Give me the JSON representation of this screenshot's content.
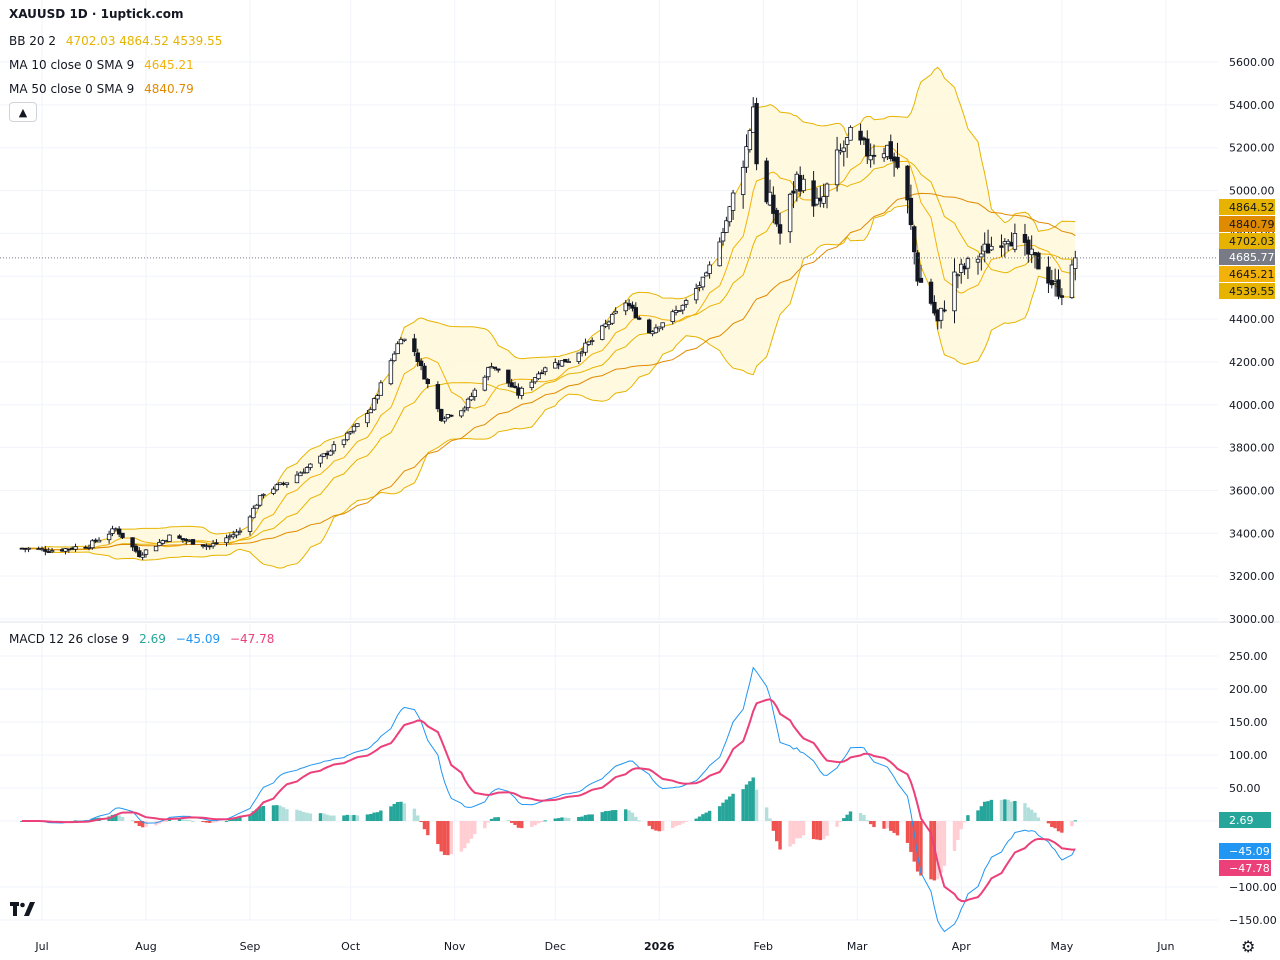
{
  "header": {
    "title": "XAUUSD 1D · 1uptick.com",
    "bb_label": "BB 20 2",
    "bb_values": [
      "4702.03",
      "4864.52",
      "4539.55"
    ],
    "ma10_label": "MA 10 close 0 SMA 9",
    "ma10_value": "4645.21",
    "ma50_label": "MA 50 close 0 SMA 9",
    "ma50_value": "4840.79",
    "macd_label": "MACD 12 26 close 9",
    "macd_values": [
      "2.69",
      "−45.09",
      "−47.78"
    ]
  },
  "colors": {
    "bb": "#e6b400",
    "bb_fill": "#fff8dc",
    "ma10": "#f2b20a",
    "ma50": "#e08a00",
    "macd_line": "#2196f3",
    "signal_line": "#ec407a",
    "hist_pos_strong": "#26a69a",
    "hist_pos_weak": "#b2dfdb",
    "hist_neg_strong": "#ef5350",
    "hist_neg_weak": "#ffcdd2",
    "last_price": "#787b86"
  },
  "chart_data": [
    {
      "type": "candlestick",
      "ylim": [
        3000,
        5600
      ],
      "y_ticks": [
        "3000.00",
        "3200.00",
        "3400.00",
        "3600.00",
        "3800.00",
        "4000.00",
        "4200.00",
        "4400.00",
        "4600.00",
        "4800.00",
        "5000.00",
        "5200.00",
        "5400.00",
        "5600.00"
      ],
      "x_ticks": [
        "Jul",
        "Aug",
        "Sep",
        "Oct",
        "Nov",
        "Dec",
        "2026",
        "Feb",
        "Mar",
        "Apr",
        "May",
        "Jun"
      ],
      "x_tick_dates": [
        "2025-07-01",
        "2025-08-01",
        "2025-09-01",
        "2025-10-01",
        "2025-11-01",
        "2025-12-01",
        "2026-01-01",
        "2026-02-01",
        "2026-03-01",
        "2026-04-01",
        "2026-05-01",
        "2026-06-01"
      ],
      "close_anchors": [
        [
          "2025-06-25",
          3330
        ],
        [
          "2025-07-05",
          3320
        ],
        [
          "2025-07-15",
          3345
        ],
        [
          "2025-07-23",
          3420
        ],
        [
          "2025-07-30",
          3300
        ],
        [
          "2025-08-08",
          3385
        ],
        [
          "2025-08-20",
          3340
        ],
        [
          "2025-08-29",
          3410
        ],
        [
          "2025-09-05",
          3590
        ],
        [
          "2025-09-12",
          3640
        ],
        [
          "2025-09-22",
          3750
        ],
        [
          "2025-09-30",
          3855
        ],
        [
          "2025-10-07",
          3980
        ],
        [
          "2025-10-16",
          4320
        ],
        [
          "2025-10-20",
          4250
        ],
        [
          "2025-10-28",
          3940
        ],
        [
          "2025-11-04",
          3990
        ],
        [
          "2025-11-12",
          4190
        ],
        [
          "2025-11-20",
          4050
        ],
        [
          "2025-11-28",
          4180
        ],
        [
          "2025-12-05",
          4210
        ],
        [
          "2025-12-12",
          4300
        ],
        [
          "2025-12-22",
          4480
        ],
        [
          "2025-12-29",
          4340
        ],
        [
          "2026-01-08",
          4460
        ],
        [
          "2026-01-15",
          4600
        ],
        [
          "2026-01-21",
          4860
        ],
        [
          "2026-01-27",
          5200
        ],
        [
          "2026-01-29",
          5400
        ],
        [
          "2026-01-31",
          4900
        ],
        [
          "2026-02-03",
          4950
        ],
        [
          "2026-02-06",
          4800
        ],
        [
          "2026-02-11",
          5060
        ],
        [
          "2026-02-18",
          4920
        ],
        [
          "2026-02-23",
          5150
        ],
        [
          "2026-02-27",
          5250
        ],
        [
          "2026-03-04",
          5180
        ],
        [
          "2026-03-10",
          5200
        ],
        [
          "2026-03-15",
          5050
        ],
        [
          "2026-03-19",
          4600
        ],
        [
          "2026-03-23",
          4480
        ],
        [
          "2026-03-25",
          4380
        ],
        [
          "2026-03-30",
          4600
        ],
        [
          "2026-04-03",
          4650
        ],
        [
          "2026-04-08",
          4720
        ],
        [
          "2026-04-15",
          4800
        ],
        [
          "2026-04-21",
          4700
        ],
        [
          "2026-04-25",
          4640
        ],
        [
          "2026-04-29",
          4550
        ],
        [
          "2026-05-01",
          4530
        ],
        [
          "2026-05-04",
          4620
        ],
        [
          "2026-05-05",
          4686
        ]
      ],
      "last_price": "4685.77",
      "price_badges": [
        {
          "value": "4864.52",
          "key": "bb"
        },
        {
          "value": "4840.79",
          "key": "ma50"
        },
        {
          "value": "4702.03",
          "key": "bb"
        },
        {
          "value": "4685.77",
          "key": "last_price"
        },
        {
          "value": "4645.21",
          "key": "ma10"
        },
        {
          "value": "4539.55",
          "key": "bb"
        }
      ]
    },
    {
      "type": "line",
      "title": "MACD 12 26 close 9",
      "ylim": [
        -150,
        250
      ],
      "y_ticks": [
        "−150.00",
        "−100.00",
        "50.00",
        "100.00",
        "150.00",
        "200.00",
        "250.00"
      ],
      "y_tick_values": [
        -150,
        -100,
        50,
        100,
        150,
        200,
        250
      ],
      "series_badges": [
        {
          "value": "2.69",
          "key": "hist_pos_strong"
        },
        {
          "value": "−45.09",
          "key": "macd_line"
        },
        {
          "value": "−47.78",
          "key": "signal_line"
        }
      ]
    }
  ]
}
